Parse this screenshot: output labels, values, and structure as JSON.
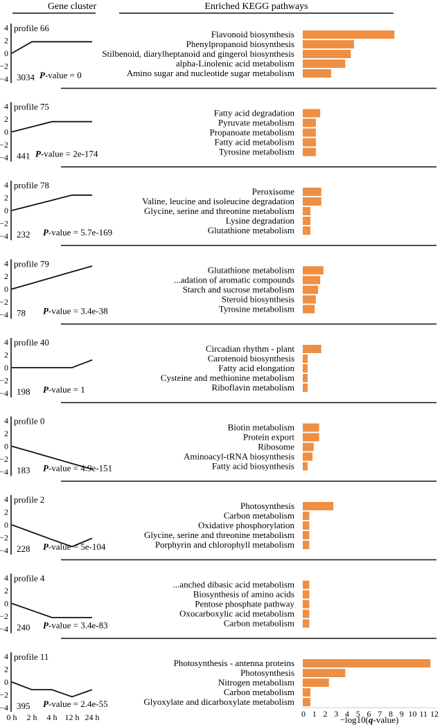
{
  "chart_data": {
    "type": "bar",
    "headers": {
      "left": "Gene cluster",
      "right": "Enriched KEGG pathways"
    },
    "bar_color": "#ee8f44",
    "xlabel_prefix": "−log10(",
    "xlabel_q": "q",
    "xlabel_suffix": "-value)",
    "xlim": [
      0,
      12
    ],
    "xticks": [
      "0",
      "1",
      "2",
      "3",
      "4",
      "5",
      "6",
      "7",
      "8",
      "9",
      "10",
      "11",
      "12"
    ],
    "profile_ylim": [
      -4,
      4
    ],
    "profile_yticks": [
      "4",
      "2",
      "0",
      "−2",
      "−4"
    ],
    "time_labels": [
      "0 h",
      "2 h",
      "4 h",
      "12 h",
      "24 h"
    ],
    "p_prefix": "P",
    "p_suffix": "-value = ",
    "panels": [
      {
        "profile": "profile 66",
        "count": "3034",
        "pvalue": "0",
        "trend": [
          0,
          1.8,
          1.8,
          1.8,
          1.8
        ],
        "pathways": [
          "Flavonoid biosynthesis",
          "Phenylpropanoid biosynthesis",
          "Stilbenoid, diarylheptanoid and gingerol biosynthesis",
          "alpha-Linolenic acid metabolism",
          "Amino sugar and nucleotide sugar metabolism"
        ],
        "values": [
          8.4,
          4.7,
          4.4,
          3.9,
          2.6
        ]
      },
      {
        "profile": "profile 75",
        "count": "441",
        "pvalue": "2e-174",
        "trend": [
          0,
          0.8,
          1.6,
          1.6,
          1.6
        ],
        "pathways": [
          "Fatty acid degradation",
          "Pyruvate metabolism",
          "Propanoate metabolism",
          "Fatty acid metabolism",
          "Tyrosine metabolism"
        ],
        "values": [
          1.6,
          1.2,
          1.2,
          1.2,
          1.2
        ]
      },
      {
        "profile": "profile 78",
        "count": "232",
        "pvalue": "5.7e-169",
        "trend": [
          0,
          0.8,
          1.6,
          2.4,
          2.4
        ],
        "pathways": [
          "Peroxisome",
          "Valine, leucine and isoleucine degradation",
          "Glycine, serine and threonine metabolism",
          "Lysine degradation",
          "Glutathione metabolism"
        ],
        "values": [
          1.7,
          1.7,
          0.7,
          0.7,
          0.7
        ]
      },
      {
        "profile": "profile 79",
        "count": "78",
        "pvalue": "3.4e-38",
        "trend": [
          0,
          0.9,
          1.8,
          2.7,
          3.6
        ],
        "pathways": [
          "Glutathione metabolism",
          "...adation of aromatic compounds",
          "Starch and sucrose metabolism",
          "Steroid biosynthesis",
          "Tyrosine metabolism"
        ],
        "values": [
          1.9,
          1.6,
          1.4,
          1.2,
          1.1
        ]
      },
      {
        "profile": "profile 40",
        "count": "198",
        "pvalue": "1",
        "trend": [
          0,
          0,
          0,
          0,
          1.2
        ],
        "pathways": [
          "Circadian rhythm - plant",
          "Carotenoid biosynthesis",
          "Fatty acid elongation",
          "Cysteine and methionine metabolism",
          "Riboflavin metabolism"
        ],
        "values": [
          1.7,
          0.45,
          0.45,
          0.45,
          0.45
        ]
      },
      {
        "profile": "profile 0",
        "count": "183",
        "pvalue": "4.9e-151",
        "trend": [
          0,
          -0.9,
          -1.8,
          -2.7,
          -3.6
        ],
        "pathways": [
          "Biotin metabolism",
          "Protein export",
          "Ribosome",
          "Aminoacyl-tRNA biosynthesis",
          "Fatty acid biosynthesis"
        ],
        "values": [
          1.5,
          1.5,
          1.0,
          0.9,
          0.45
        ]
      },
      {
        "profile": "profile 2",
        "count": "228",
        "pvalue": "5e-104",
        "trend": [
          0,
          -1.15,
          -2.3,
          -3.4,
          -2.1
        ],
        "pathways": [
          "Photosynthesis",
          "Carbon metabolism",
          "Oxidative phosphorylation",
          "Glycine, serine and threonine metabolism",
          "Porphyrin and chlorophyll metabolism"
        ],
        "values": [
          2.8,
          0.6,
          0.6,
          0.6,
          0.6
        ]
      },
      {
        "profile": "profile 4",
        "count": "240",
        "pvalue": "3.4e-83",
        "trend": [
          0,
          -1.1,
          -2.2,
          -2.2,
          -2.2
        ],
        "pathways": [
          "...anched dibasic acid metabolism",
          "Biosynthesis of amino acids",
          "Pentose phosphate pathway",
          "Oxocarboxylic acid metabolism",
          "Carbon metabolism"
        ],
        "values": [
          0.6,
          0.6,
          0.6,
          0.6,
          0.6
        ]
      },
      {
        "profile": "profile 11",
        "count": "395",
        "pvalue": "2.4e-55",
        "trend": [
          0,
          -1.2,
          -1.2,
          -2.3,
          -1.2
        ],
        "pathways": [
          "Photosynthesis - antenna proteins",
          "Photosynthesis",
          "Nitrogen metabolism",
          "Carbon metabolism",
          "Glyoxylate and dicarboxylate metabolism"
        ],
        "values": [
          11.7,
          3.9,
          2.4,
          0.7,
          0.7
        ]
      }
    ]
  }
}
